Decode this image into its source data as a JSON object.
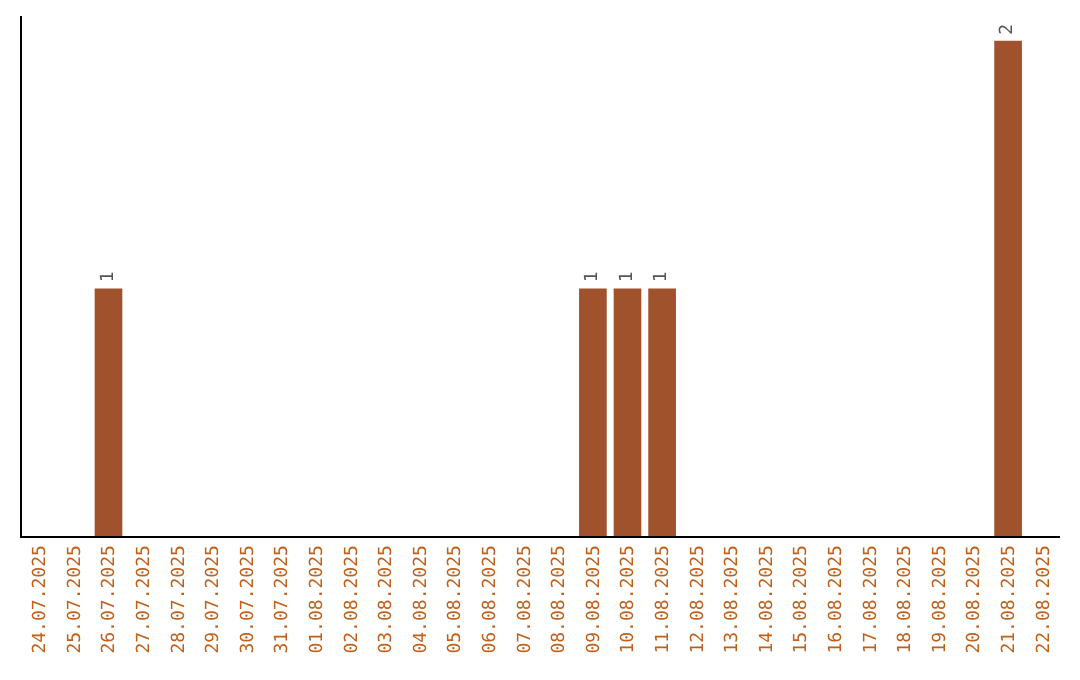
{
  "chart_data": {
    "type": "bar",
    "categories": [
      "24.07.2025",
      "25.07.2025",
      "26.07.2025",
      "27.07.2025",
      "28.07.2025",
      "29.07.2025",
      "30.07.2025",
      "31.07.2025",
      "01.08.2025",
      "02.08.2025",
      "03.08.2025",
      "04.08.2025",
      "05.08.2025",
      "06.08.2025",
      "07.08.2025",
      "08.08.2025",
      "09.08.2025",
      "10.08.2025",
      "11.08.2025",
      "12.08.2025",
      "13.08.2025",
      "14.08.2025",
      "15.08.2025",
      "16.08.2025",
      "17.08.2025",
      "18.08.2025",
      "19.08.2025",
      "20.08.2025",
      "21.08.2025",
      "22.08.2025"
    ],
    "values": [
      0,
      0,
      1,
      0,
      0,
      0,
      0,
      0,
      0,
      0,
      0,
      0,
      0,
      0,
      0,
      0,
      1,
      1,
      1,
      0,
      0,
      0,
      0,
      0,
      0,
      0,
      0,
      0,
      2,
      0
    ],
    "value_labels": [
      null,
      null,
      "1",
      null,
      null,
      null,
      null,
      null,
      null,
      null,
      null,
      null,
      null,
      null,
      null,
      null,
      "1",
      "1",
      "1",
      null,
      null,
      null,
      null,
      null,
      null,
      null,
      null,
      null,
      "2",
      null
    ],
    "color": "#a0522d",
    "ylim": [
      0,
      2.1
    ],
    "tick_labels": "x"
  }
}
